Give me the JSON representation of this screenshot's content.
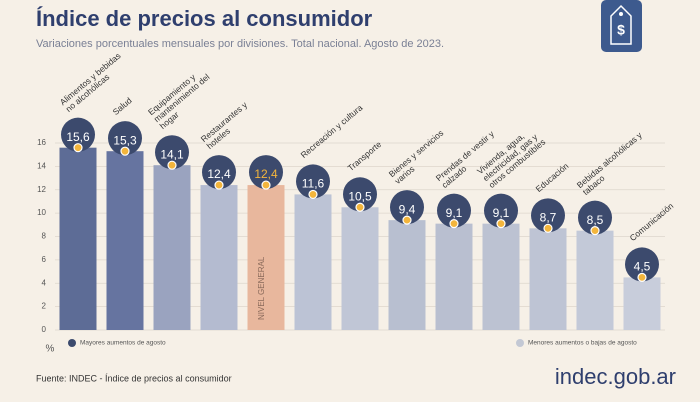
{
  "chart_data": {
    "type": "bar",
    "title": "Índice de precios al consumidor",
    "subtitle": "Variaciones porcentuales mensuales por divisiones. Total nacional. Agosto de 2023.",
    "y_label": "%",
    "categories": [
      "Alimentos y bebidas no alcohólicas",
      "Salud",
      "Equipamiento y mantenimiento del hogar",
      "Restaurantes y hoteles",
      "NIVEL GENERAL",
      "Recreación y cultura",
      "Transporte",
      "Bienes y servicios varios",
      "Prendas de vestir y calzado",
      "Vivienda, agua, electricidad, gas y otros combustibles",
      "Educación",
      "Bebidas alcohólicas y tabaco",
      "Comunicación"
    ],
    "values": [
      15.6,
      15.3,
      14.1,
      12.4,
      12.4,
      11.6,
      10.5,
      9.4,
      9.1,
      9.1,
      8.7,
      8.5,
      4.5
    ],
    "value_labels": [
      "15,6",
      "15,3",
      "14,1",
      "12,4",
      "12,4",
      "11,6",
      "10,5",
      "9,4",
      "9,1",
      "9,1",
      "8,7",
      "8,5",
      "4,5"
    ],
    "colors": [
      "#5d6c96",
      "#6674a0",
      "#9aa3bf",
      "#b4bbd0",
      "#e8b79d",
      "#bcc3d5",
      "#c0c6d6",
      "#b8bfd0",
      "#b9bfd0",
      "#bcc2d2",
      "#bec4d4",
      "#c3c9d8",
      "#c8cddb"
    ],
    "value_label_colors": [
      "#ffffff",
      "#ffffff",
      "#ffffff",
      "#ffffff",
      "#f3b53c",
      "#ffffff",
      "#ffffff",
      "#ffffff",
      "#ffffff",
      "#ffffff",
      "#ffffff",
      "#ffffff",
      "#ffffff"
    ],
    "ylim": [
      0,
      16
    ],
    "yticks": [
      0,
      2,
      4,
      6,
      8,
      10,
      12,
      14,
      16
    ],
    "grid": true,
    "legend": [
      {
        "label": "Mayores aumentos de agosto",
        "color": "#3c4a6d"
      },
      {
        "label": "Menores aumentos o bajas de agosto",
        "color": "#c3c8d4"
      }
    ],
    "source": "Fuente: INDEC - Índice de precios al consumidor",
    "logo": "indec.gob.ar"
  }
}
